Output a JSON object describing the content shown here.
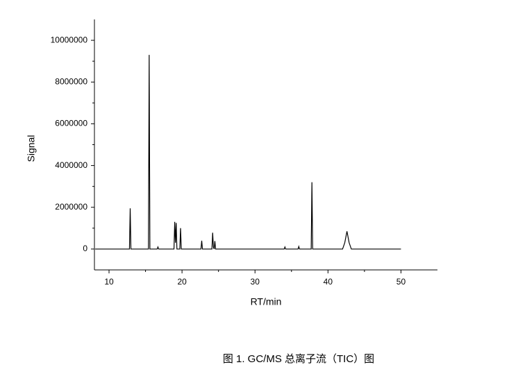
{
  "chart_data": {
    "type": "line",
    "xlabel": "RT/min",
    "ylabel": "Signal",
    "caption": "图 1. GC/MS 总离子流（TIC）图",
    "color": "#000000",
    "x": [
      8.1,
      12.8,
      12.9,
      13.0,
      15.4,
      15.5,
      15.6,
      16.6,
      16.7,
      16.8,
      18.9,
      19.0,
      19.1,
      19.2,
      19.3,
      19.7,
      19.8,
      19.9,
      22.6,
      22.7,
      22.8,
      24.1,
      24.2,
      24.3,
      24.4,
      24.5,
      24.6,
      34.0,
      34.1,
      34.2,
      35.9,
      36.0,
      36.1,
      37.7,
      37.8,
      37.9,
      42.0,
      42.3,
      42.6,
      42.9,
      43.2,
      50.0
    ],
    "values": [
      0,
      0,
      1950000,
      0,
      0,
      9300000,
      0,
      0,
      100000,
      0,
      0,
      1300000,
      300000,
      1250000,
      0,
      0,
      1000000,
      0,
      0,
      400000,
      0,
      0,
      780000,
      100000,
      0,
      380000,
      0,
      0,
      100000,
      0,
      0,
      120000,
      0,
      0,
      3200000,
      0,
      0,
      300000,
      850000,
      300000,
      0,
      0
    ],
    "xlim": [
      8,
      55
    ],
    "xticks": [
      10,
      20,
      30,
      40,
      50
    ],
    "ylim": [
      -1000000,
      11000000
    ],
    "yticks": [
      0,
      2000000,
      4000000,
      6000000,
      8000000,
      10000000
    ],
    "grid": false
  }
}
